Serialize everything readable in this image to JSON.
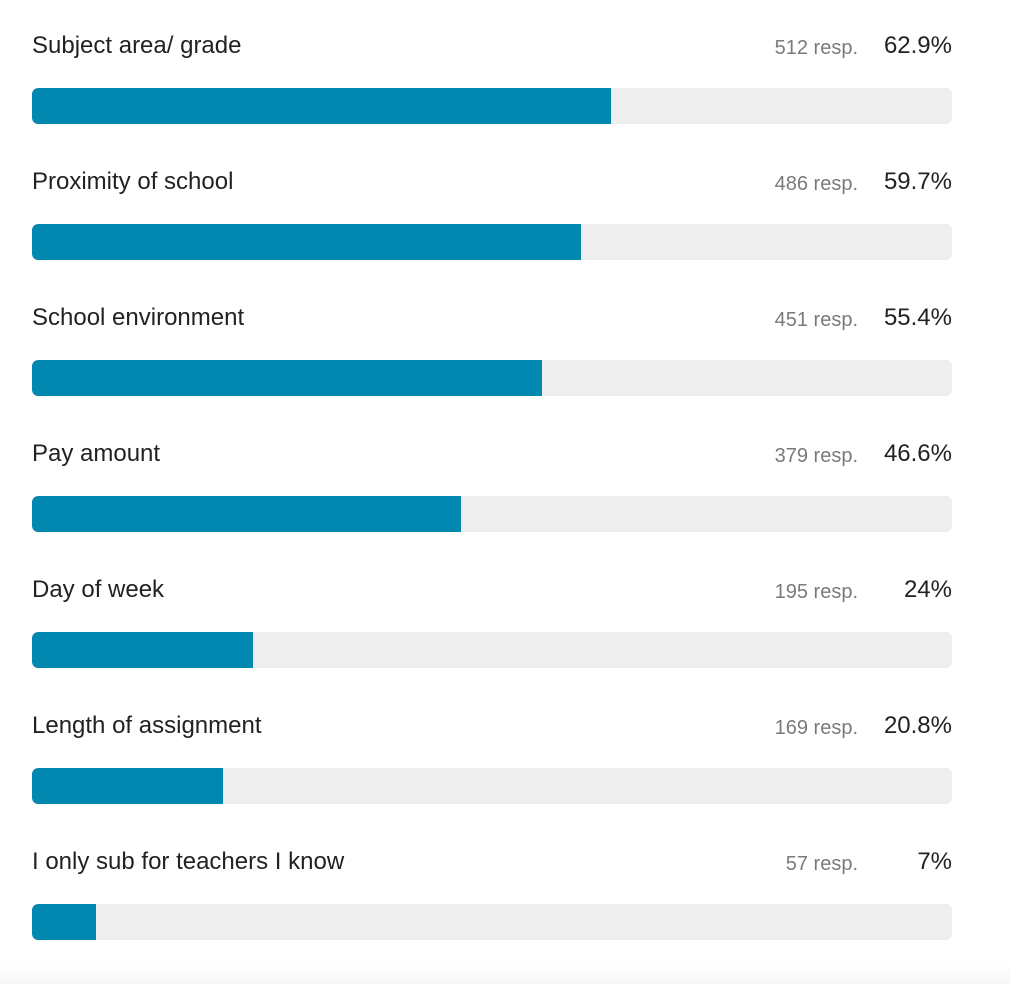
{
  "chart_data": {
    "type": "bar",
    "orientation": "horizontal",
    "bar_color": "#0088b1",
    "track_color": "#efefef",
    "xlim": [
      0,
      100
    ],
    "categories": [
      "Subject area/ grade",
      "Proximity of school",
      "School environment",
      "Pay amount",
      "Day of week",
      "Length of assignment",
      "I only sub for teachers I know"
    ],
    "series": [
      {
        "values": [
          62.9,
          59.7,
          55.4,
          46.6,
          24,
          20.8,
          7
        ]
      }
    ],
    "responses": [
      512,
      486,
      451,
      379,
      195,
      169,
      57
    ],
    "count_labels": [
      "512 resp.",
      "486 resp.",
      "451 resp.",
      "379 resp.",
      "195 resp.",
      "169 resp.",
      "57 resp."
    ],
    "percent_labels": [
      "62.9%",
      "59.7%",
      "55.4%",
      "46.6%",
      "24%",
      "20.8%",
      "7%"
    ]
  }
}
